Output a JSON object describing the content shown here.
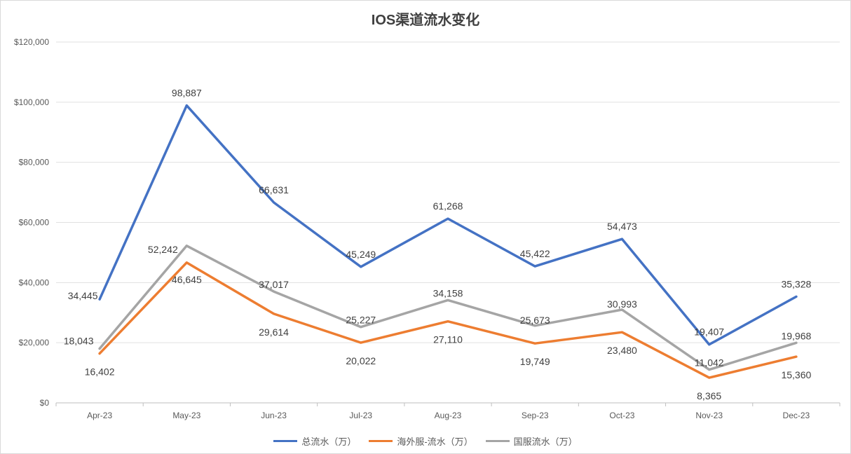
{
  "chart_data": {
    "type": "line",
    "title": "IOS渠道流水变化",
    "categories": [
      "Apr-23",
      "May-23",
      "Jun-23",
      "Jul-23",
      "Aug-23",
      "Sep-23",
      "Oct-23",
      "Nov-23",
      "Dec-23"
    ],
    "series": [
      {
        "name": "总流水（万）",
        "color": "#4472c4",
        "values": [
          34445,
          98887,
          66631,
          45249,
          61268,
          45422,
          54473,
          19407,
          35328
        ],
        "labels": [
          "34,445",
          "98,887",
          "66,631",
          "45,249",
          "61,268",
          "45,422",
          "54,473",
          "19,407",
          "35,328"
        ]
      },
      {
        "name": "海外服-流水（万）",
        "color": "#ed7d31",
        "values": [
          16402,
          46645,
          29614,
          20022,
          27110,
          19749,
          23480,
          8365,
          15360
        ],
        "labels": [
          "16,402",
          "46,645",
          "29,614",
          "20,022",
          "27,110",
          "19,749",
          "23,480",
          "8,365",
          "15,360"
        ]
      },
      {
        "name": "国服流水（万）",
        "color": "#a5a5a5",
        "values": [
          18043,
          52242,
          37017,
          25227,
          34158,
          25673,
          30993,
          11042,
          19968
        ],
        "labels": [
          "18,043",
          "52,242",
          "37,017",
          "25,227",
          "34,158",
          "25,673",
          "30,993",
          "11,042",
          "19,968"
        ]
      }
    ],
    "yticks": [
      0,
      20000,
      40000,
      60000,
      80000,
      100000,
      120000
    ],
    "ytick_labels": [
      "$0",
      "$20,000",
      "$40,000",
      "$60,000",
      "$80,000",
      "$100,000",
      "$120,000"
    ],
    "ylim": [
      0,
      120000
    ],
    "grid": true,
    "legend_position": "bottom"
  }
}
